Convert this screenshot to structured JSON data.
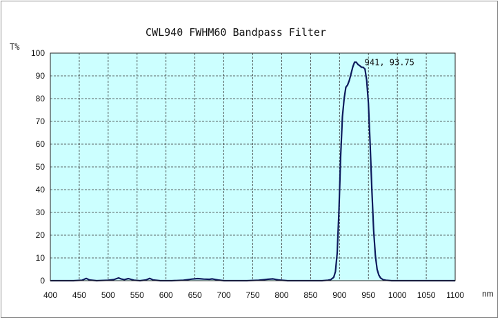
{
  "chart_data": {
    "type": "line",
    "title": "CWL940 FWHM60 Bandpass Filter",
    "ylabel": "T%",
    "xlabel": "nm",
    "xlim": [
      400,
      1100
    ],
    "ylim": [
      0,
      100
    ],
    "xticks": [
      400,
      450,
      500,
      550,
      600,
      650,
      700,
      750,
      800,
      850,
      900,
      950,
      1000,
      1050,
      1100
    ],
    "yticks": [
      0,
      10,
      20,
      30,
      40,
      50,
      60,
      70,
      80,
      90,
      100
    ],
    "grid": true,
    "legend": "none",
    "plot_background": "#ccffff",
    "line_color": "#0d1a5c",
    "annotation": {
      "text": "941, 93.75",
      "x": 941,
      "y": 93.75
    },
    "series": [
      {
        "x": [
          400,
          420,
          440,
          455,
          462,
          468,
          480,
          500,
          510,
          518,
          522,
          528,
          535,
          545,
          555,
          565,
          572,
          578,
          590,
          610,
          630,
          645,
          655,
          665,
          675,
          680,
          690,
          700,
          720,
          740,
          760,
          775,
          785,
          795,
          810,
          830,
          850,
          870,
          880,
          885,
          890,
          893,
          896,
          899,
          902,
          905,
          908,
          911,
          914,
          917,
          920,
          923,
          926,
          929,
          932,
          935,
          938,
          941,
          944,
          947,
          950,
          953,
          956,
          959,
          962,
          965,
          968,
          971,
          975,
          980,
          990,
          1000,
          1020,
          1050,
          1075,
          1100
        ],
        "y": [
          0,
          0,
          0,
          0.2,
          1.0,
          0.3,
          0,
          0.2,
          0.5,
          1.2,
          0.8,
          0.5,
          0.9,
          0.2,
          0,
          0.3,
          1.0,
          0.3,
          0,
          0,
          0.2,
          0.7,
          0.9,
          0.7,
          0.6,
          0.8,
          0.3,
          0,
          0,
          0,
          0.2,
          0.6,
          0.8,
          0.3,
          0,
          0,
          0,
          0,
          0.2,
          0.5,
          1.5,
          4,
          12,
          30,
          55,
          72,
          80,
          85,
          86,
          88,
          91,
          94,
          96,
          96,
          95,
          94.5,
          93.8,
          93.75,
          93,
          88,
          78,
          60,
          40,
          22,
          11,
          5,
          2.5,
          1.2,
          0.5,
          0.2,
          0,
          0,
          0,
          0,
          0,
          0
        ]
      }
    ]
  }
}
